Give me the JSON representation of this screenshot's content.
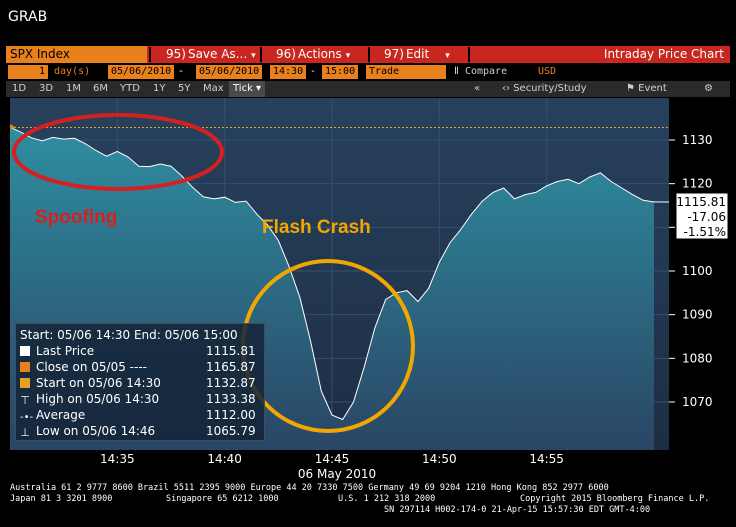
{
  "window": {
    "title": "GRAB"
  },
  "menu": {
    "ticker": "SPX Index",
    "save": {
      "num": "95)",
      "label": "Save As..."
    },
    "actions": {
      "num": "96)",
      "label": "Actions"
    },
    "edit": {
      "num": "97)",
      "label": "Edit"
    },
    "caret": "▾",
    "chart_title": "Intraday Price Chart"
  },
  "params": {
    "period_count": "1",
    "period_unit": "day(s)",
    "start_date": "05/06/2010",
    "end_date": "05/06/2010",
    "start_time": "14:30",
    "end_time": "15:00",
    "data_type": "Trade",
    "compare": "Compare",
    "currency": "USD",
    "dash": "-"
  },
  "range_tabs": [
    "1D",
    "3D",
    "1M",
    "6M",
    "YTD",
    "1Y",
    "5Y",
    "Max"
  ],
  "tick_tab": "Tick ▾",
  "toolbar_right": {
    "collapse": "«",
    "security_study": "Security/Study",
    "event": "Event",
    "gear": "⚙"
  },
  "colors": {
    "red_bar": "#c8261f",
    "orange": "#e8801c",
    "area_top": "#2e8ea0",
    "area_bottom": "#2a4565",
    "plot_bg": "#253b55",
    "red_annotation": "#d62020",
    "yellow_annotation": "#f2a600"
  },
  "chart_data": {
    "type": "area",
    "title": "Intraday Price Chart",
    "xlabel": "06 May 2010",
    "ylabel": "",
    "xlim": [
      "14:30",
      "15:00"
    ],
    "ylim": [
      1060,
      1136
    ],
    "x_ticks": [
      "14:35",
      "14:40",
      "14:45",
      "14:50",
      "14:55"
    ],
    "y_ticks": [
      1130,
      1120,
      1110,
      1100,
      1090,
      1080,
      1070
    ],
    "series": [
      {
        "name": "Last Price",
        "x_minutes": [
          0,
          0.5,
          1,
          1.5,
          2,
          2.5,
          3,
          3.5,
          4,
          4.5,
          5,
          5.5,
          6,
          6.5,
          7,
          7.5,
          8,
          8.5,
          9,
          9.5,
          10,
          10.5,
          11,
          11.5,
          12,
          12.5,
          13,
          13.5,
          14,
          14.5,
          15,
          15.5,
          16,
          16.5,
          17,
          17.5,
          18,
          18.5,
          19,
          19.5,
          20,
          20.5,
          21,
          21.5,
          22,
          22.5,
          23,
          23.5,
          24,
          24.5,
          25,
          25.5,
          26,
          26.5,
          27,
          27.5,
          28,
          28.5,
          29,
          29.5,
          30
        ],
        "values": [
          1132.9,
          1131.8,
          1130.5,
          1129.8,
          1130.6,
          1130.2,
          1130.4,
          1129.2,
          1127.6,
          1126.3,
          1127.4,
          1126.1,
          1124.0,
          1123.9,
          1124.5,
          1124.0,
          1121.8,
          1119.2,
          1117.0,
          1116.5,
          1116.9,
          1115.7,
          1116.0,
          1113.0,
          1110.5,
          1107.0,
          1101.0,
          1094.0,
          1084.0,
          1072.5,
          1067.0,
          1066.0,
          1070.0,
          1078.0,
          1087.0,
          1093.5,
          1095.0,
          1095.5,
          1093.0,
          1096.0,
          1102.0,
          1106.5,
          1109.5,
          1113.0,
          1116.0,
          1118.0,
          1119.0,
          1116.5,
          1117.5,
          1118.0,
          1119.5,
          1120.5,
          1121.0,
          1120.0,
          1121.5,
          1122.5,
          1120.5,
          1119.0,
          1117.5,
          1116.2,
          1115.81
        ]
      },
      {
        "name": "Close on 05/05",
        "value": 1165.87
      }
    ],
    "reference_line": 1132.87,
    "last_box": {
      "price": "1115.81",
      "change": "-17.06",
      "pct": "-1.51%"
    },
    "grid": true,
    "legend_placement": "bottom-left"
  },
  "stats": {
    "header": "Start: 05/06 14:30 End: 05/06 15:00",
    "rows": [
      {
        "label": "Last Price",
        "value": "1115.81"
      },
      {
        "label": "Close on 05/05 ----",
        "value": "1165.87"
      },
      {
        "label": "Start on 05/06 14:30",
        "value": "1132.87"
      },
      {
        "label": "High on 05/06 14:30",
        "value": "1133.38"
      },
      {
        "label": "Average",
        "value": "1112.00"
      },
      {
        "label": "Low on 05/06 14:46",
        "value": "1065.79"
      }
    ]
  },
  "annotations": {
    "spoofing": "Spoofing",
    "flash_crash": "Flash Crash"
  },
  "footer": {
    "line1": "Australia 61 2 9777 8600 Brazil 5511 2395 9000 Europe 44 20 7330 7500 Germany 49 69 9204 1210 Hong Kong 852 2977 6000",
    "line2_left": "Japan 81 3 3201 8900",
    "line2_mid": "Singapore 65 6212 1000",
    "line2_us": "U.S. 1 212 318 2000",
    "line2_right": "Copyright 2015 Bloomberg Finance L.P.",
    "line3": "SN 297114 H002-174-0 21-Apr-15 15:57:30 EDT  GMT-4:00"
  }
}
